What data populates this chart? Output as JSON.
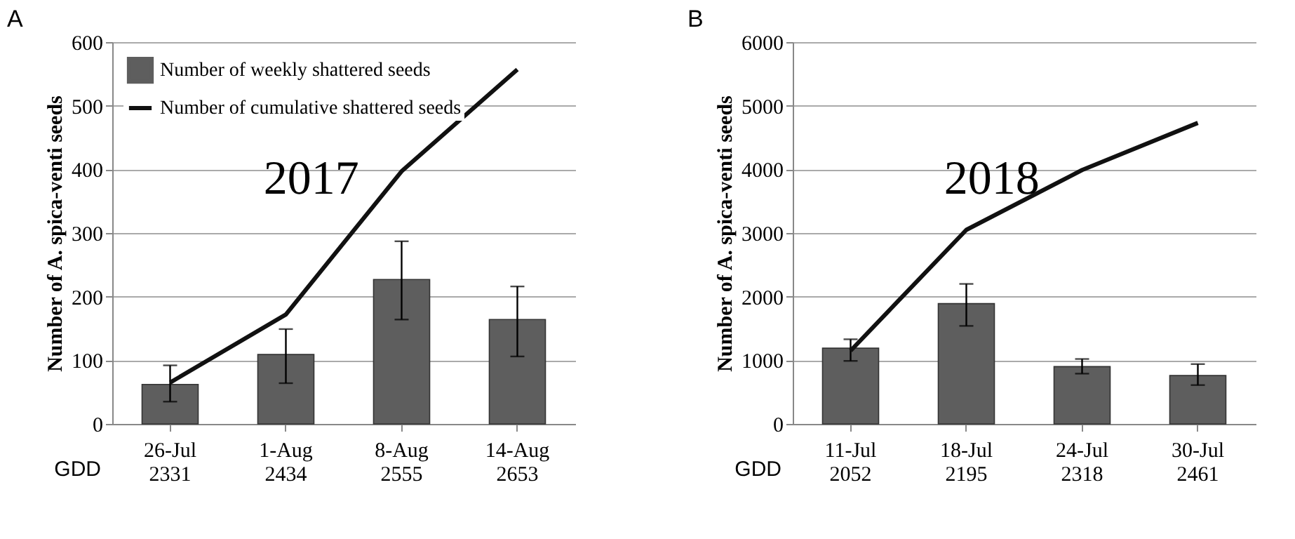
{
  "chart_data": [
    {
      "type": "bar",
      "title": "A",
      "ylabel": "Number  of A. spica-venti  seeds",
      "categories": [
        "26-Jul\n2331",
        "1-Aug\n2434",
        "8-Aug\n2555",
        "14-Aug\n2653"
      ],
      "ylim": [
        0,
        600
      ],
      "yticks": [
        0,
        100,
        200,
        300,
        400,
        500,
        600
      ],
      "grid": "y",
      "legend": "top left",
      "marker": "none",
      "annotations": [
        "2017",
        "GDD"
      ],
      "series": [
        {
          "name": "Number of weekly shattered seeds",
          "color": "#5e5e5e",
          "values": [
            62,
            109,
            227,
            164
          ],
          "errors": [
            [
              35,
              92
            ],
            [
              64,
              149
            ],
            [
              164,
              287
            ],
            [
              106,
              216
            ]
          ]
        },
        {
          "name": "Number of cumulative shattered seeds",
          "type": "line",
          "color": "#111111",
          "values": [
            65,
            172,
            397,
            557
          ]
        }
      ]
    },
    {
      "type": "bar",
      "title": "B",
      "ylabel": "Number  of A. spica-venti seeds",
      "categories": [
        "11-Jul\n2052",
        "18-Jul\n2195",
        "24-Jul\n2318",
        "30-Jul\n2461"
      ],
      "ylim": [
        0,
        6000
      ],
      "yticks": [
        0,
        1000,
        2000,
        3000,
        4000,
        5000,
        6000
      ],
      "grid": "y",
      "legend": "top left",
      "marker": "none",
      "annotations": [
        "2018",
        "GDD"
      ],
      "series": [
        {
          "name": "Number of weekly shattered seeds",
          "color": "#5e5e5e",
          "values": [
            1190,
            1890,
            900,
            760
          ],
          "errors": [
            [
              990,
              1330
            ],
            [
              1540,
              2200
            ],
            [
              790,
              1020
            ],
            [
              610,
              940
            ]
          ]
        },
        {
          "name": "Number of cumulative shattered seeds",
          "type": "line",
          "color": "#111111",
          "values": [
            1150,
            3050,
            3990,
            4730
          ]
        }
      ]
    }
  ]
}
